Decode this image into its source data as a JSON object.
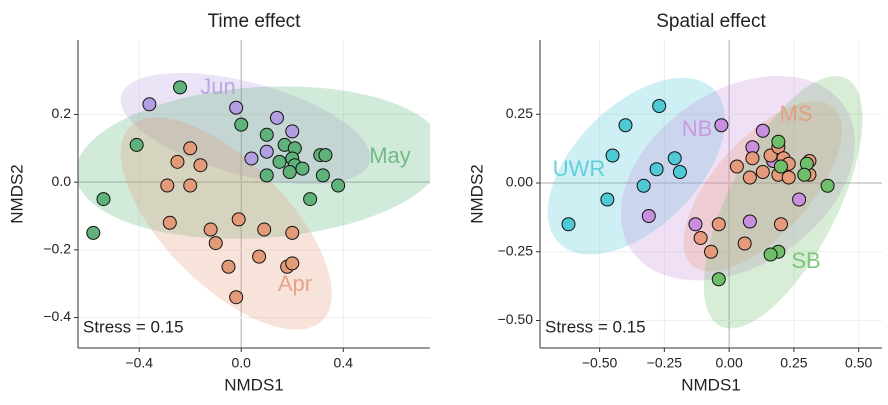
{
  "chart_data": [
    {
      "type": "scatter",
      "title": "Time effect",
      "xlabel": "NMDS1",
      "ylabel": "NMDS2",
      "annotation": "Stress = 0.15",
      "xlim": [
        -0.64,
        0.74
      ],
      "ylim": [
        -0.49,
        0.42
      ],
      "grid": true,
      "xticks": [
        {
          "value": -0.4,
          "label": "−0.4"
        },
        {
          "value": 0,
          "label": "0.0"
        },
        0.4
      ],
      "yticks": [
        {
          "value": -0.4,
          "label": "−0.4"
        },
        {
          "value": -0.2,
          "label": "−0.2"
        },
        {
          "value": 0,
          "label": "0.0"
        },
        0.2
      ],
      "series": [
        {
          "name": "Jun",
          "color": "#b29ee0",
          "x": [
            -0.36,
            -0.02,
            0.14,
            0.2,
            0.04,
            0.1
          ],
          "values": [
            0.23,
            0.22,
            0.19,
            0.15,
            0.07,
            0.09
          ]
        },
        {
          "name": "May",
          "color": "#5fb37a",
          "x": [
            -0.24,
            -0.41,
            -0.54,
            -0.58,
            0.0,
            0.1,
            0.17,
            0.21,
            0.31,
            0.33,
            0.2,
            0.15,
            0.21,
            0.1,
            0.19,
            0.24,
            0.32,
            0.38,
            0.27
          ],
          "values": [
            0.28,
            0.11,
            -0.05,
            -0.15,
            0.17,
            0.14,
            0.11,
            0.1,
            0.08,
            0.08,
            0.07,
            0.06,
            0.05,
            0.02,
            0.03,
            0.04,
            0.02,
            -0.01,
            -0.05
          ]
        },
        {
          "name": "Apr",
          "color": "#e39a78",
          "x": [
            -0.2,
            -0.25,
            -0.16,
            -0.29,
            -0.2,
            -0.28,
            -0.12,
            -0.01,
            0.09,
            -0.1,
            0.2,
            -0.05,
            0.07,
            0.18,
            0.2,
            -0.02
          ],
          "values": [
            0.1,
            0.06,
            0.05,
            -0.01,
            -0.01,
            -0.12,
            -0.14,
            -0.11,
            -0.14,
            -0.18,
            -0.15,
            -0.25,
            -0.22,
            -0.25,
            -0.24,
            -0.34
          ]
        }
      ]
    },
    {
      "type": "scatter",
      "title": "Spatial effect",
      "xlabel": "NMDS1",
      "ylabel": "NMDS2",
      "annotation": "Stress = 0.15",
      "xlim": [
        -0.73,
        0.59
      ],
      "ylim": [
        -0.6,
        0.52
      ],
      "grid": true,
      "xticks": [
        {
          "value": -0.5,
          "label": "−0.50"
        },
        {
          "value": -0.25,
          "label": "−0.25"
        },
        {
          "value": 0,
          "label": "0.00"
        },
        0.25,
        {
          "value": 0.5,
          "label": "0.50"
        }
      ],
      "yticks": [
        {
          "value": -0.5,
          "label": "−0.50"
        },
        {
          "value": -0.25,
          "label": "−0.25"
        },
        {
          "value": 0,
          "label": "0.00"
        },
        0.25
      ],
      "series": [
        {
          "name": "UWR",
          "color": "#4fc9d6",
          "x": [
            -0.4,
            -0.27,
            -0.45,
            -0.33,
            -0.28,
            -0.21,
            -0.19,
            -0.47,
            -0.62
          ],
          "values": [
            0.21,
            0.28,
            0.1,
            -0.01,
            0.05,
            0.09,
            0.04,
            -0.06,
            -0.15
          ]
        },
        {
          "name": "NB",
          "color": "#c98edd",
          "x": [
            -0.03,
            0.13,
            0.09,
            0.17,
            0.27,
            -0.31,
            -0.13,
            0.08
          ],
          "values": [
            0.21,
            0.19,
            0.13,
            0.08,
            -0.06,
            -0.12,
            -0.15,
            -0.14
          ]
        },
        {
          "name": "MS",
          "color": "#e69a7b",
          "x": [
            0.09,
            0.16,
            0.19,
            0.21,
            0.23,
            0.31,
            0.03,
            0.08,
            0.13,
            0.19,
            0.31,
            0.23,
            -0.04,
            -0.11,
            0.06,
            -0.07,
            0.2
          ],
          "values": [
            0.09,
            0.1,
            0.13,
            0.09,
            0.07,
            0.08,
            0.06,
            0.02,
            0.04,
            0.03,
            0.03,
            0.02,
            -0.15,
            -0.2,
            -0.22,
            -0.25,
            -0.15
          ]
        },
        {
          "name": "SB",
          "color": "#6fbf6a",
          "x": [
            0.19,
            0.2,
            0.3,
            0.29,
            0.38,
            0.19,
            0.16,
            -0.04
          ],
          "values": [
            0.15,
            0.06,
            0.07,
            0.03,
            -0.01,
            -0.25,
            -0.26,
            -0.35
          ]
        }
      ]
    }
  ]
}
